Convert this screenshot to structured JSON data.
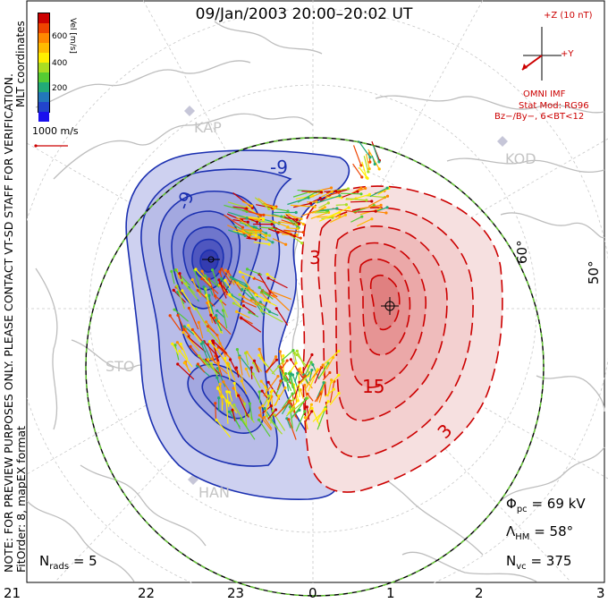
{
  "title": "09/Jan/2003 20:00–20:02 UT",
  "notice": {
    "line1": "NOTE: FOR PREVIEW PURPOSES ONLY. PLEASE CONTACT VT-SD STAFF FOR VERIFICATION.",
    "line2": "FitOrder: 8, mapEX format"
  },
  "coordinates_label": "MLT coordinates",
  "colorbar": {
    "axis_label": "Vel [m/s]",
    "ticks": [
      "600",
      "400",
      "200"
    ],
    "colors": [
      "#cc0000",
      "#ee4400",
      "#ff8800",
      "#ffbb00",
      "#ffee00",
      "#aadd22",
      "#55cc33",
      "#22aa77",
      "#2277bb",
      "#2244cc",
      "#1a10ee"
    ]
  },
  "velocity_scale": "1000 m/s",
  "imf": {
    "z_label": "+Z (10 nT)",
    "y_label": "+Y",
    "source": "OMNI IMF",
    "stat_mod": "Stat Mod: RG96",
    "condition": "Bz−/By−, 6<BT<12"
  },
  "latitude_labels": [
    "60°",
    "50°"
  ],
  "contour_labels": [
    "-9",
    "-9",
    "3",
    "15",
    "3"
  ],
  "station_labels": [
    "KAP",
    "KOD",
    "STO",
    "HAN"
  ],
  "mlt_labels": [
    "21",
    "22",
    "23",
    "0",
    "1",
    "2",
    "3"
  ],
  "stats": {
    "phi_pc": "= 69 kV",
    "lambda_hm": "= 58°",
    "n_vc": "= 375",
    "n_rads": "= 5"
  },
  "colors": {
    "negative_cell": "#1a2fb0",
    "positive_cell": "#cc0000",
    "negative_fill": "#b9bde8",
    "positive_fill": "#f3c9c9",
    "coastline": "#bdbdbd",
    "boundary": "#66cc33"
  }
}
